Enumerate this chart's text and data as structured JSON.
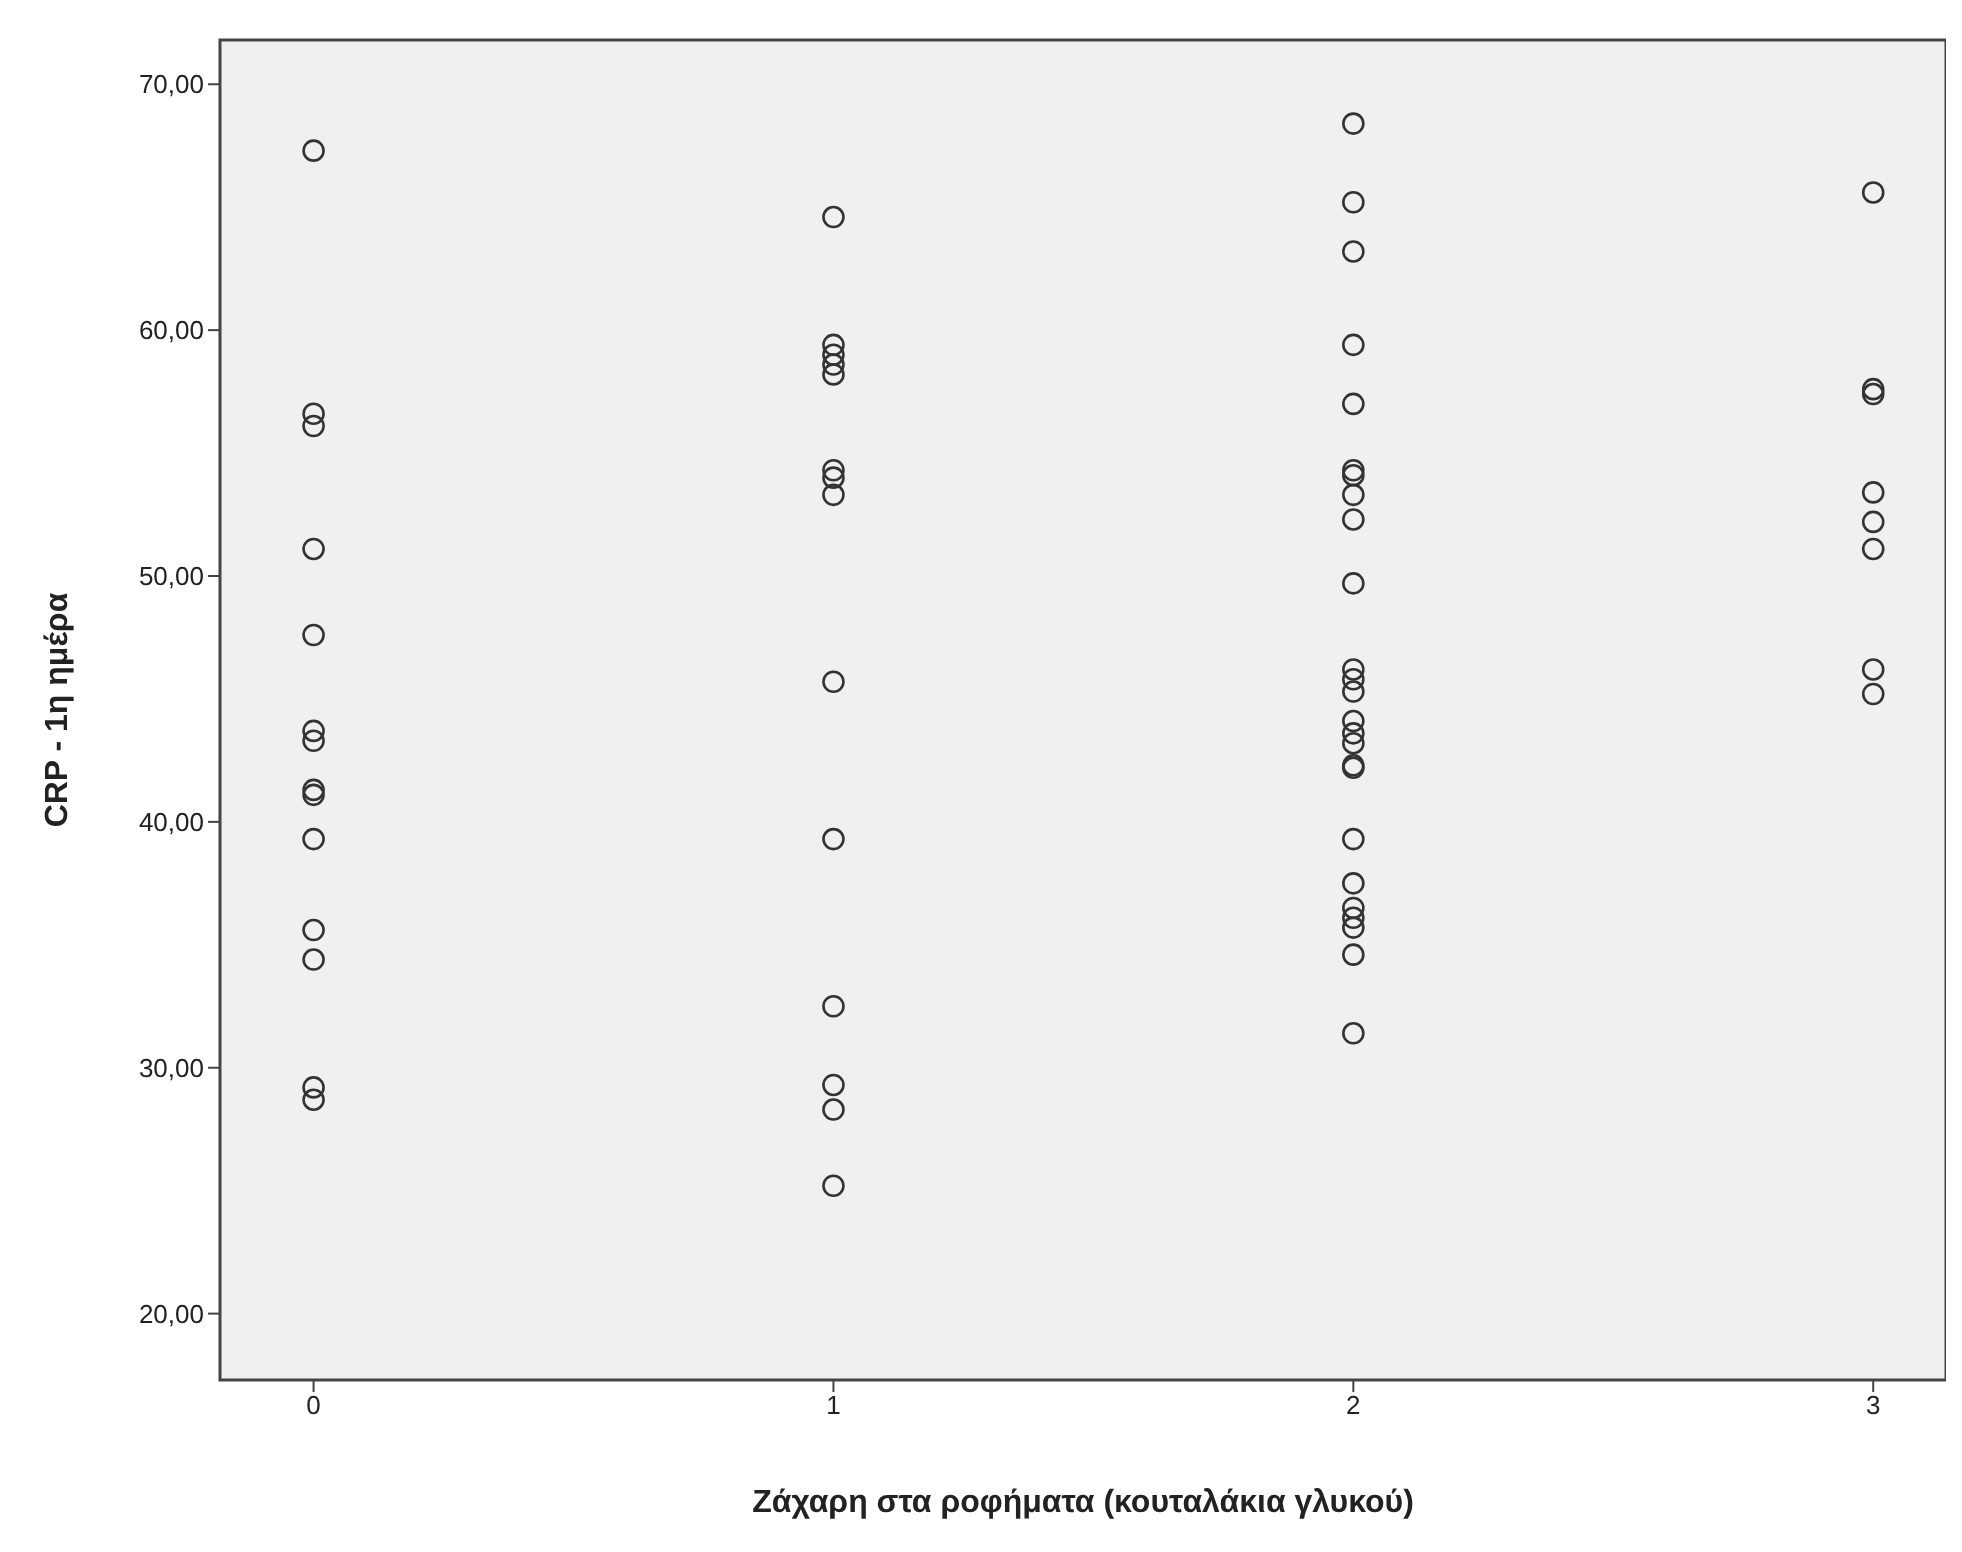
{
  "chart_data": {
    "type": "scatter",
    "xlabel": "Ζάχαρη στα ροφήματα (κουταλάκια γλυκού)",
    "ylabel": "CRP - 1η ημέρα",
    "marker": "circle",
    "legend": false,
    "xlim": [
      -0.18,
      3.14
    ],
    "xticks": [
      0,
      1,
      2,
      3
    ],
    "ylim": [
      17.3,
      71.8
    ],
    "yticks": [
      {
        "value": 20,
        "label": "20,00"
      },
      {
        "value": 30,
        "label": "30,00"
      },
      {
        "value": 40,
        "label": "40,00"
      },
      {
        "value": 50,
        "label": "50,00"
      },
      {
        "value": 60,
        "label": "60,00"
      },
      {
        "value": 70,
        "label": "70,00"
      }
    ],
    "series": [
      {
        "color": "#333333",
        "x": [
          0,
          0,
          0,
          0,
          0,
          0,
          0,
          0,
          0,
          0,
          0,
          0,
          0,
          0,
          1,
          1,
          1,
          1,
          1,
          1,
          1,
          1,
          1,
          1,
          1,
          1,
          1,
          1,
          2,
          2,
          2,
          2,
          2,
          2,
          2,
          2,
          2,
          2,
          2,
          2,
          2,
          2,
          2,
          2,
          2,
          2,
          2,
          2,
          2,
          2,
          2,
          2,
          2,
          3,
          3,
          3,
          3,
          3,
          3,
          3,
          3
        ],
        "values": [
          67.3,
          56.6,
          56.1,
          51.1,
          47.6,
          43.7,
          43.3,
          41.3,
          41.1,
          39.3,
          35.6,
          34.4,
          29.2,
          28.7,
          64.6,
          59.4,
          59.0,
          58.6,
          58.2,
          54.3,
          54.0,
          53.3,
          45.7,
          39.3,
          32.5,
          29.3,
          28.3,
          25.2,
          68.4,
          65.2,
          63.2,
          59.4,
          57.0,
          54.3,
          54.1,
          53.3,
          52.3,
          49.7,
          46.2,
          45.8,
          45.3,
          44.1,
          43.6,
          43.2,
          42.3,
          42.2,
          39.3,
          37.5,
          36.5,
          36.1,
          35.7,
          34.6,
          31.4,
          65.6,
          57.6,
          57.4,
          53.4,
          52.2,
          51.1,
          46.2,
          45.2
        ]
      }
    ]
  }
}
